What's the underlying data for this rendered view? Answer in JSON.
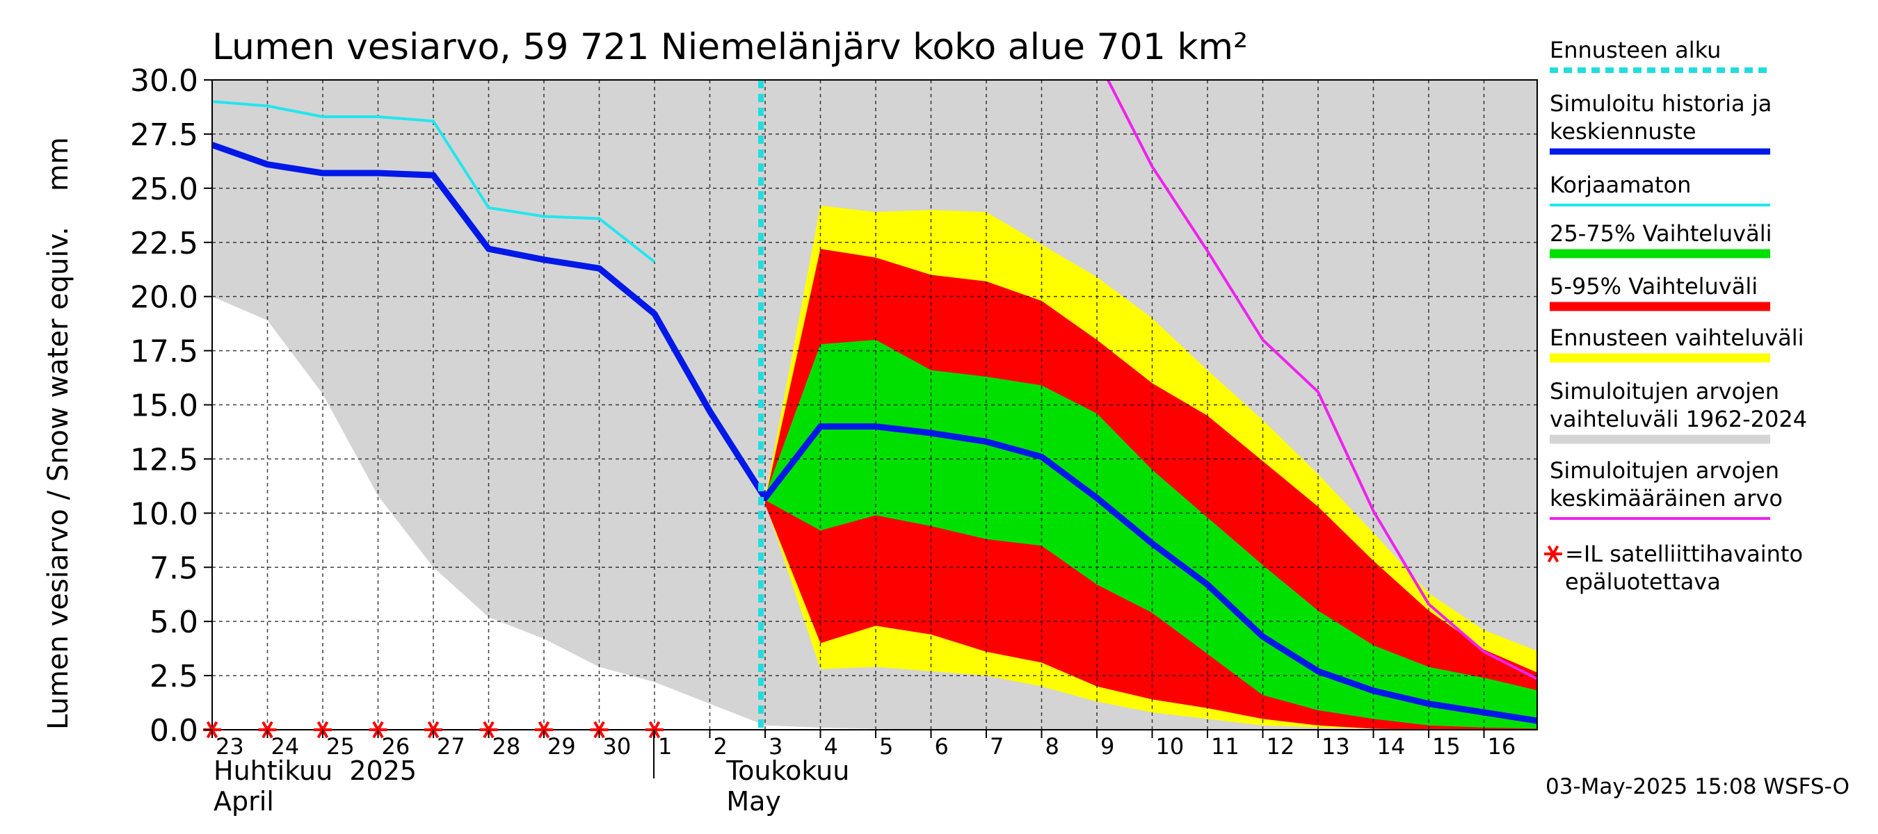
{
  "chart_data": {
    "type": "area",
    "title": "Lumen vesiarvo, 59 721 Niemelänjärv koko alue 701 km²",
    "ylabel": "Lumen vesiarvo / Snow water equiv.    mm",
    "ylim": [
      0,
      30
    ],
    "yticks": [
      "0.0",
      "2.5",
      "5.0",
      "7.5",
      "10.0",
      "12.5",
      "15.0",
      "17.5",
      "20.0",
      "22.5",
      "25.0",
      "27.5",
      "30.0"
    ],
    "x_labels": [
      "23",
      "24",
      "25",
      "26",
      "27",
      "28",
      "29",
      "30",
      "1",
      "2",
      "3",
      "4",
      "5",
      "6",
      "7",
      "8",
      "9",
      "10",
      "11",
      "12",
      "13",
      "14",
      "15",
      "16"
    ],
    "x_start": "2025-04-23",
    "months": [
      {
        "line1": "Huhtikuu  2025",
        "line2": "April"
      },
      {
        "line1": "Toukokuu",
        "line2": "May"
      }
    ],
    "forecast_start": "2025-05-03",
    "historical_range": {
      "name": "Simuloitujen arvojen vaihteluväli 1962-2024",
      "upper": [
        30,
        30,
        30,
        30,
        30,
        30,
        30,
        30,
        30,
        30,
        30,
        30,
        30,
        30,
        30,
        30,
        30,
        30,
        30,
        30,
        30,
        30,
        30,
        30,
        30
      ],
      "lower": [
        20.0,
        18.9,
        15.5,
        10.8,
        7.5,
        5.2,
        4.2,
        2.9,
        2.2,
        1.2,
        0.2,
        0.1,
        0.05,
        0,
        0,
        0,
        0,
        0,
        0,
        0,
        0,
        0,
        0,
        0,
        0
      ]
    },
    "satellite_observations": {
      "name": "=IL satelliittihavainto epäluotettava",
      "x": [
        0,
        1,
        2,
        3,
        4,
        5,
        6,
        7,
        8
      ],
      "value": 0
    },
    "series": [
      {
        "name": "Simuloitu historia ja keskiennuste",
        "x": [
          0,
          1,
          2,
          3,
          4,
          5,
          6,
          7,
          8,
          9,
          10,
          11,
          12,
          13,
          14,
          15,
          16,
          17,
          18,
          19,
          20,
          21,
          22,
          23,
          24
        ],
        "values": [
          27.0,
          26.1,
          25.7,
          25.7,
          25.6,
          22.2,
          21.7,
          21.3,
          19.2,
          14.7,
          10.7,
          14.0,
          14.0,
          13.7,
          13.3,
          12.6,
          10.7,
          8.6,
          6.7,
          4.3,
          2.7,
          1.8,
          1.2,
          0.8,
          0.4
        ]
      },
      {
        "name": "Korjaamaton",
        "x": [
          0,
          1,
          2,
          3,
          4,
          5,
          6,
          7,
          8
        ],
        "values": [
          29.0,
          28.8,
          28.3,
          28.3,
          28.1,
          24.1,
          23.7,
          23.6,
          21.6
        ]
      },
      {
        "name": "Simuloitujen arvojen keskimääräinen arvo",
        "x": [
          16.2,
          17,
          18,
          19,
          20,
          21,
          22,
          23,
          24
        ],
        "values": [
          30.0,
          26.0,
          22.1,
          18.0,
          15.6,
          10.1,
          5.8,
          3.6,
          2.3
        ]
      }
    ],
    "bands": [
      {
        "name": "Ennusteen vaihteluväli",
        "x": [
          10,
          11,
          12,
          13,
          14,
          15,
          16,
          17,
          18,
          19,
          20,
          21,
          22,
          23,
          24
        ],
        "upper": [
          10.7,
          24.2,
          23.9,
          24.0,
          23.9,
          22.4,
          20.9,
          19.0,
          16.6,
          14.3,
          11.8,
          9.1,
          6.3,
          4.6,
          3.6
        ],
        "lower": [
          10.5,
          2.8,
          2.9,
          2.7,
          2.5,
          2.0,
          1.3,
          0.8,
          0.5,
          0.2,
          0.1,
          0.05,
          0,
          0,
          0
        ]
      },
      {
        "name": "5-95% Vaihteluväli",
        "x": [
          10,
          11,
          12,
          13,
          14,
          15,
          16,
          17,
          18,
          19,
          20,
          21,
          22,
          23,
          24
        ],
        "upper": [
          10.6,
          22.2,
          21.8,
          21.0,
          20.7,
          19.8,
          18.0,
          16.0,
          14.5,
          12.4,
          10.3,
          7.8,
          5.5,
          3.7,
          2.6
        ],
        "lower": [
          10.4,
          4.0,
          4.8,
          4.4,
          3.6,
          3.1,
          2.0,
          1.4,
          1.0,
          0.5,
          0.2,
          0.05,
          0,
          0,
          0
        ]
      },
      {
        "name": "25-75% Vaihteluväli",
        "x": [
          10,
          11,
          12,
          13,
          14,
          15,
          16,
          17,
          18,
          19,
          20,
          21,
          22,
          23,
          24
        ],
        "upper": [
          10.8,
          17.8,
          18.0,
          16.6,
          16.3,
          15.9,
          14.6,
          12.0,
          9.8,
          7.6,
          5.5,
          3.9,
          2.9,
          2.4,
          1.8
        ],
        "lower": [
          10.6,
          9.2,
          9.9,
          9.4,
          8.8,
          8.5,
          6.7,
          5.4,
          3.5,
          1.6,
          0.9,
          0.5,
          0.2,
          0.1,
          0.05
        ]
      }
    ]
  },
  "legend": [
    {
      "label": "Ennusteen alku",
      "color": "#22dddd",
      "style": "dotted"
    },
    {
      "label": "Simuloitu historia ja\nkeskiennuste",
      "color": "#0018e8",
      "style": "thick"
    },
    {
      "label": "Korjaamaton",
      "color": "#22e6ee",
      "style": "thin"
    },
    {
      "label": "25-75% Vaihteluväli",
      "color": "#00e000",
      "style": "band"
    },
    {
      "label": "5-95% Vaihteluväli",
      "color": "#ff0000",
      "style": "band"
    },
    {
      "label": "Ennusteen vaihteluväli",
      "color": "#ffff00",
      "style": "band"
    },
    {
      "label": "Simuloitujen arvojen\nvaihteluväli 1962-2024",
      "color": "#d4d4d4",
      "style": "band"
    },
    {
      "label": "Simuloitujen arvojen\nkeskimääräinen arvo",
      "color": "#ee22ee",
      "style": "thin"
    },
    {
      "label": "=IL satelliittihavainto\nepäluotettava",
      "color": "#ff0000",
      "style": "star"
    }
  ],
  "footer": "03-May-2025 15:08 WSFS-O",
  "colors": {
    "history": "#0018e8",
    "uncorrected": "#22e6ee",
    "mean": "#ee22ee",
    "band_p25_75": "#00e000",
    "band_p5_95": "#ff0000",
    "band_forecast": "#ffff00",
    "band_hist": "#d4d4d4",
    "forecast_line": "#22dddd",
    "star": "#ff0000"
  }
}
